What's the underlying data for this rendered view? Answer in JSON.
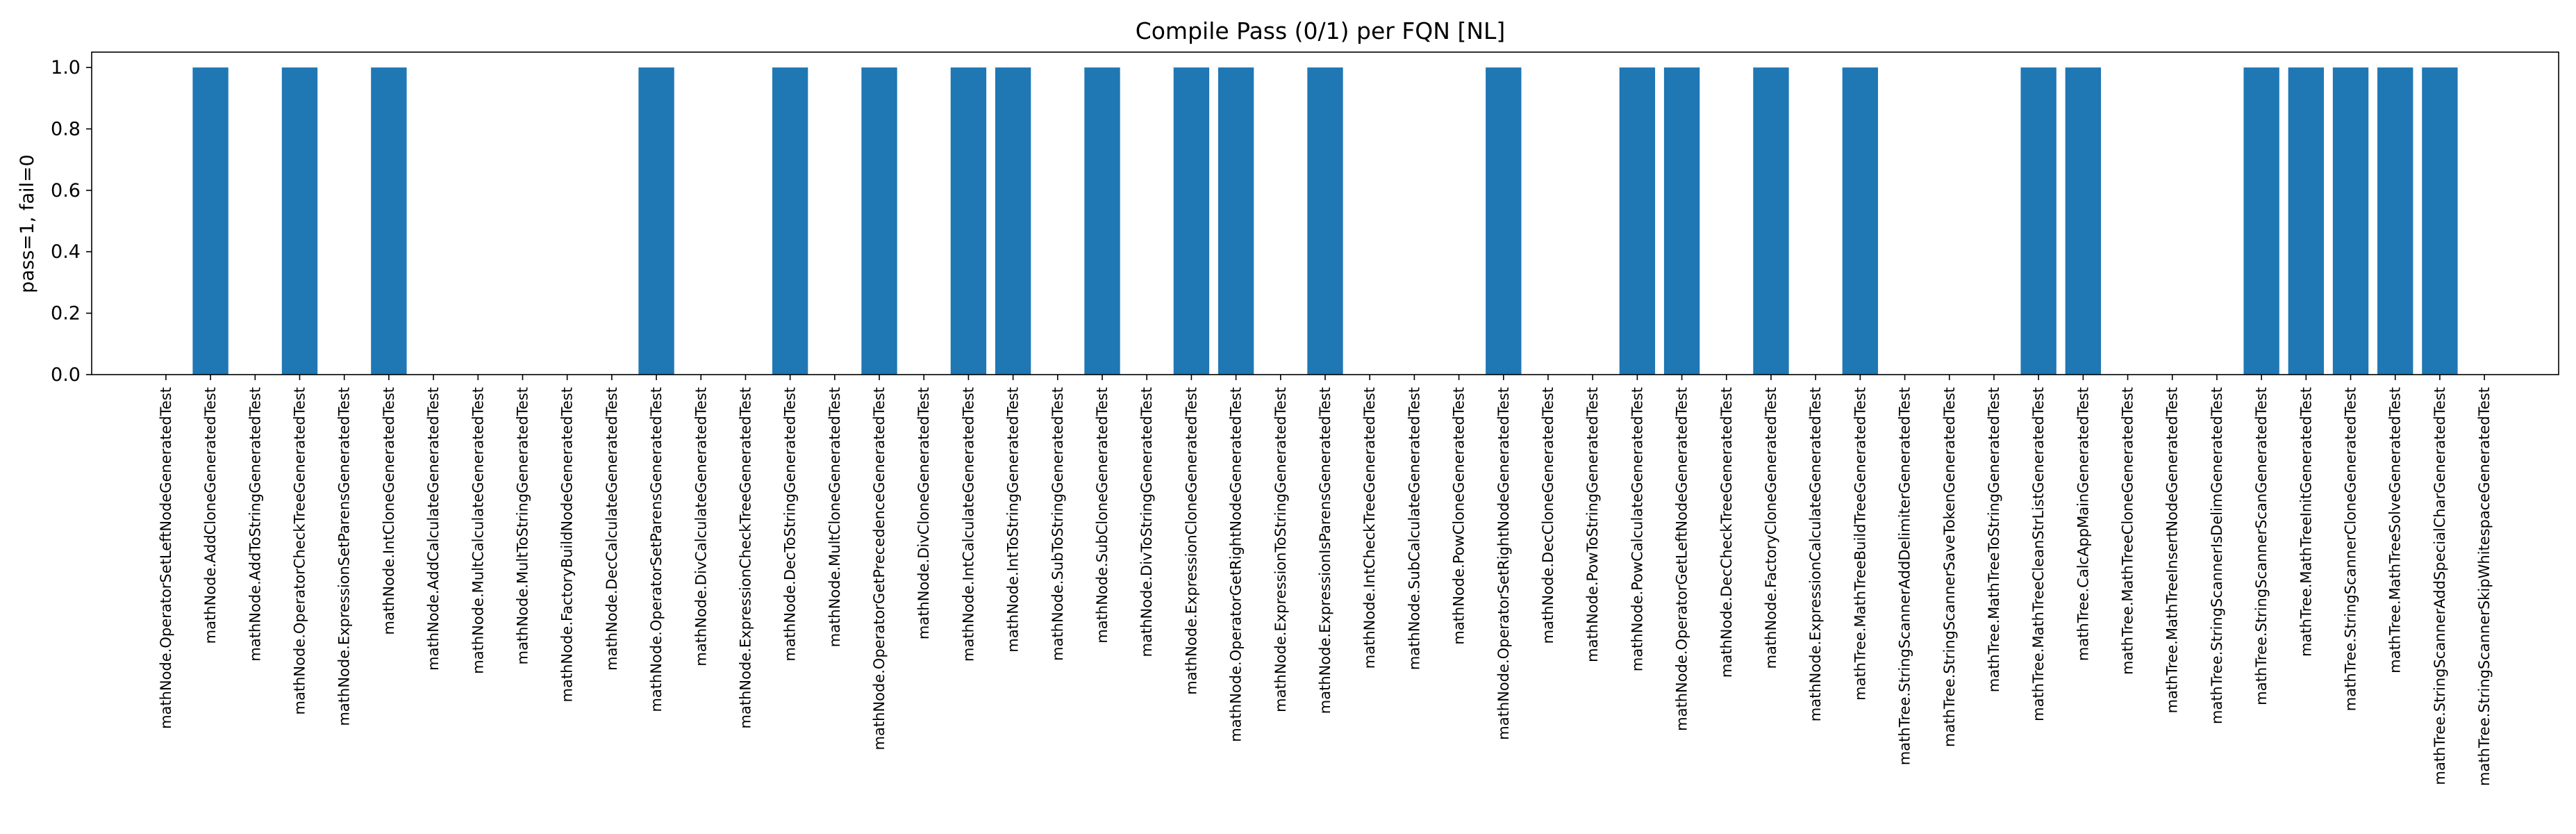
{
  "chart_data": {
    "type": "bar",
    "title": "Compile Pass (0/1) per FQN [NL]",
    "xlabel": "",
    "ylabel": "pass=1, fail=0",
    "ylim": [
      0,
      1.05
    ],
    "yticks": [
      "0.0",
      "0.2",
      "0.4",
      "0.6",
      "0.8",
      "1.0"
    ],
    "grid": false,
    "bar_color": "#1f77b4",
    "categories": [
      "mathNode.OperatorSetLeftNodeGeneratedTest",
      "mathNode.AddCloneGeneratedTest",
      "mathNode.AddToStringGeneratedTest",
      "mathNode.OperatorCheckTreeGeneratedTest",
      "mathNode.ExpressionSetParensGeneratedTest",
      "mathNode.IntCloneGeneratedTest",
      "mathNode.AddCalculateGeneratedTest",
      "mathNode.MultCalculateGeneratedTest",
      "mathNode.MultToStringGeneratedTest",
      "mathNode.FactoryBuildNodeGeneratedTest",
      "mathNode.DecCalculateGeneratedTest",
      "mathNode.OperatorSetParensGeneratedTest",
      "mathNode.DivCalculateGeneratedTest",
      "mathNode.ExpressionCheckTreeGeneratedTest",
      "mathNode.DecToStringGeneratedTest",
      "mathNode.MultCloneGeneratedTest",
      "mathNode.OperatorGetPrecedenceGeneratedTest",
      "mathNode.DivCloneGeneratedTest",
      "mathNode.IntCalculateGeneratedTest",
      "mathNode.IntToStringGeneratedTest",
      "mathNode.SubToStringGeneratedTest",
      "mathNode.SubCloneGeneratedTest",
      "mathNode.DivToStringGeneratedTest",
      "mathNode.ExpressionCloneGeneratedTest",
      "mathNode.OperatorGetRightNodeGeneratedTest",
      "mathNode.ExpressionToStringGeneratedTest",
      "mathNode.ExpressionIsParensGeneratedTest",
      "mathNode.IntCheckTreeGeneratedTest",
      "mathNode.SubCalculateGeneratedTest",
      "mathNode.PowCloneGeneratedTest",
      "mathNode.OperatorSetRightNodeGeneratedTest",
      "mathNode.DecCloneGeneratedTest",
      "mathNode.PowToStringGeneratedTest",
      "mathNode.PowCalculateGeneratedTest",
      "mathNode.OperatorGetLeftNodeGeneratedTest",
      "mathNode.DecCheckTreeGeneratedTest",
      "mathNode.FactoryCloneGeneratedTest",
      "mathNode.ExpressionCalculateGeneratedTest",
      "mathTree.MathTreeBuildTreeGeneratedTest",
      "mathTree.StringScannerAddDelimiterGeneratedTest",
      "mathTree.StringScannerSaveTokenGeneratedTest",
      "mathTree.MathTreeToStringGeneratedTest",
      "mathTree.MathTreeCleanStrListGeneratedTest",
      "mathTree.CalcAppMainGeneratedTest",
      "mathTree.MathTreeCloneGeneratedTest",
      "mathTree.MathTreeInsertNodeGeneratedTest",
      "mathTree.StringScannerIsDelimGeneratedTest",
      "mathTree.StringScannerScanGeneratedTest",
      "mathTree.MathTreeInitGeneratedTest",
      "mathTree.StringScannerCloneGeneratedTest",
      "mathTree.MathTreeSolveGeneratedTest",
      "mathTree.StringScannerAddSpecialCharGeneratedTest",
      "mathTree.StringScannerSkipWhitespaceGeneratedTest"
    ],
    "values": [
      0,
      1,
      0,
      1,
      0,
      1,
      0,
      0,
      0,
      0,
      0,
      1,
      0,
      0,
      1,
      0,
      1,
      0,
      1,
      1,
      0,
      1,
      0,
      1,
      1,
      0,
      1,
      0,
      0,
      0,
      1,
      0,
      0,
      1,
      1,
      0,
      1,
      0,
      1,
      0,
      0,
      0,
      1,
      1,
      0,
      0,
      0,
      1,
      1,
      1,
      1,
      1,
      0
    ]
  }
}
